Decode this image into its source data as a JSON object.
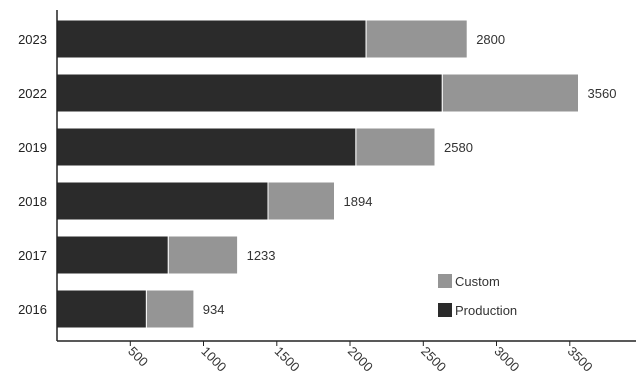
{
  "chart_data": {
    "type": "bar",
    "orientation": "horizontal",
    "stacked": true,
    "categories": [
      "2023",
      "2022",
      "2019",
      "2018",
      "2017",
      "2016"
    ],
    "series": [
      {
        "name": "Production",
        "color": "#2b2b2b",
        "values": [
          2110,
          2630,
          2040,
          1440,
          760,
          610
        ]
      },
      {
        "name": "Custom",
        "color": "#959595",
        "values": [
          690,
          930,
          540,
          454,
          473,
          324
        ]
      }
    ],
    "totals": [
      "2800",
      "3560",
      "2580",
      "1894",
      "1233",
      "934"
    ],
    "x_ticks": [
      "500",
      "1000",
      "1500",
      "2000",
      "2500",
      "3000",
      "3500"
    ],
    "x_tick_values": [
      500,
      1000,
      1500,
      2000,
      2500,
      3000,
      3500
    ],
    "xlim": [
      0,
      3900
    ],
    "grid": false,
    "legend_position": "bottom-right",
    "legend_order": [
      "Custom",
      "Production"
    ]
  }
}
